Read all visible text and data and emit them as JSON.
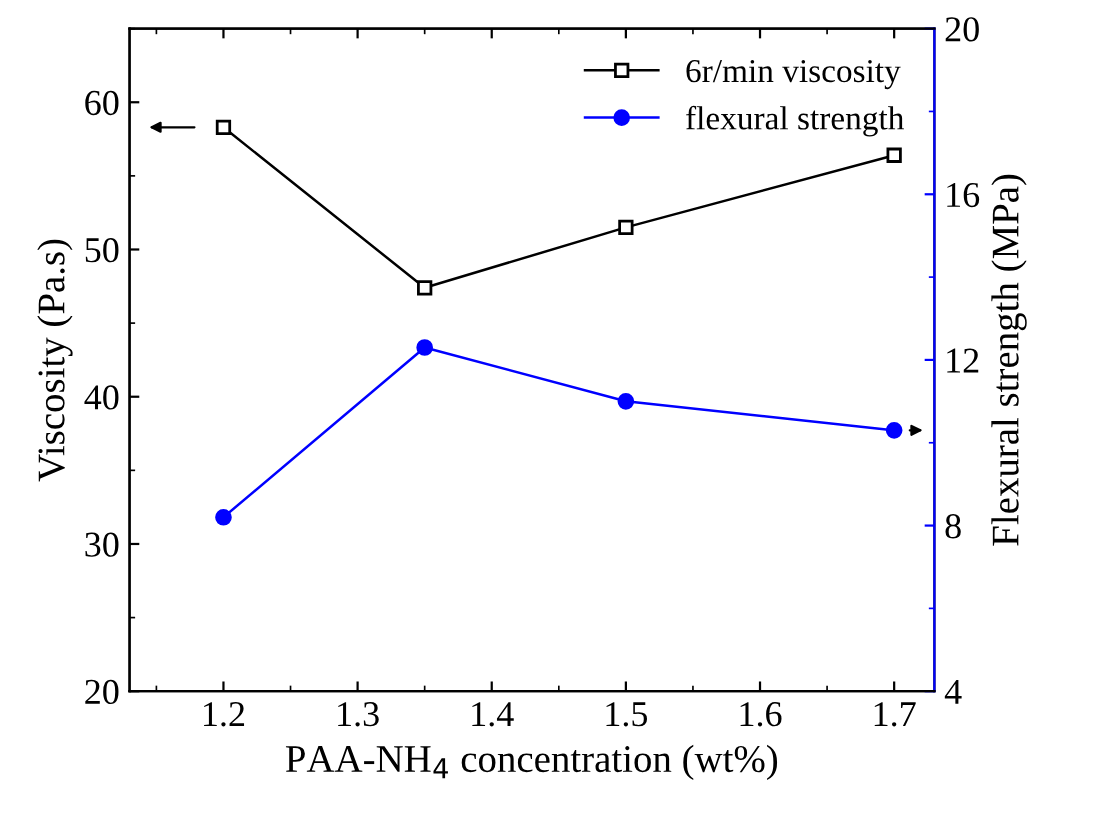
{
  "chart_data": {
    "type": "line",
    "xlabel": "PAA-NH$_{4}$ concentration (wt%)",
    "ylabel": "Viscosity (Pa.s)",
    "y2label": "Flexural strength (MPa)",
    "x": [
      1.2,
      1.35,
      1.5,
      1.7
    ],
    "series": [
      {
        "name": "6r/min viscosity",
        "color": "#000000",
        "marker": "square",
        "values": [
          58.3,
          47.4,
          51.5,
          56.4
        ]
      },
      {
        "name": "flexural strength",
        "color": "#0000ff",
        "marker": "circle",
        "axis": "y2",
        "values": [
          8.2,
          12.3,
          11.0,
          10.3
        ]
      }
    ],
    "xlim": [
      1.13,
      1.73
    ],
    "xticks": [
      1.2,
      1.3,
      1.4,
      1.5,
      1.6,
      1.7
    ],
    "ylim": [
      20,
      65
    ],
    "yticks": [
      20,
      30,
      40,
      50,
      60
    ],
    "y2lim": [
      4,
      20
    ],
    "y2ticks": [
      4,
      8,
      12,
      16,
      20
    ],
    "legend": "top right",
    "grid": false,
    "line_style": "solid"
  }
}
